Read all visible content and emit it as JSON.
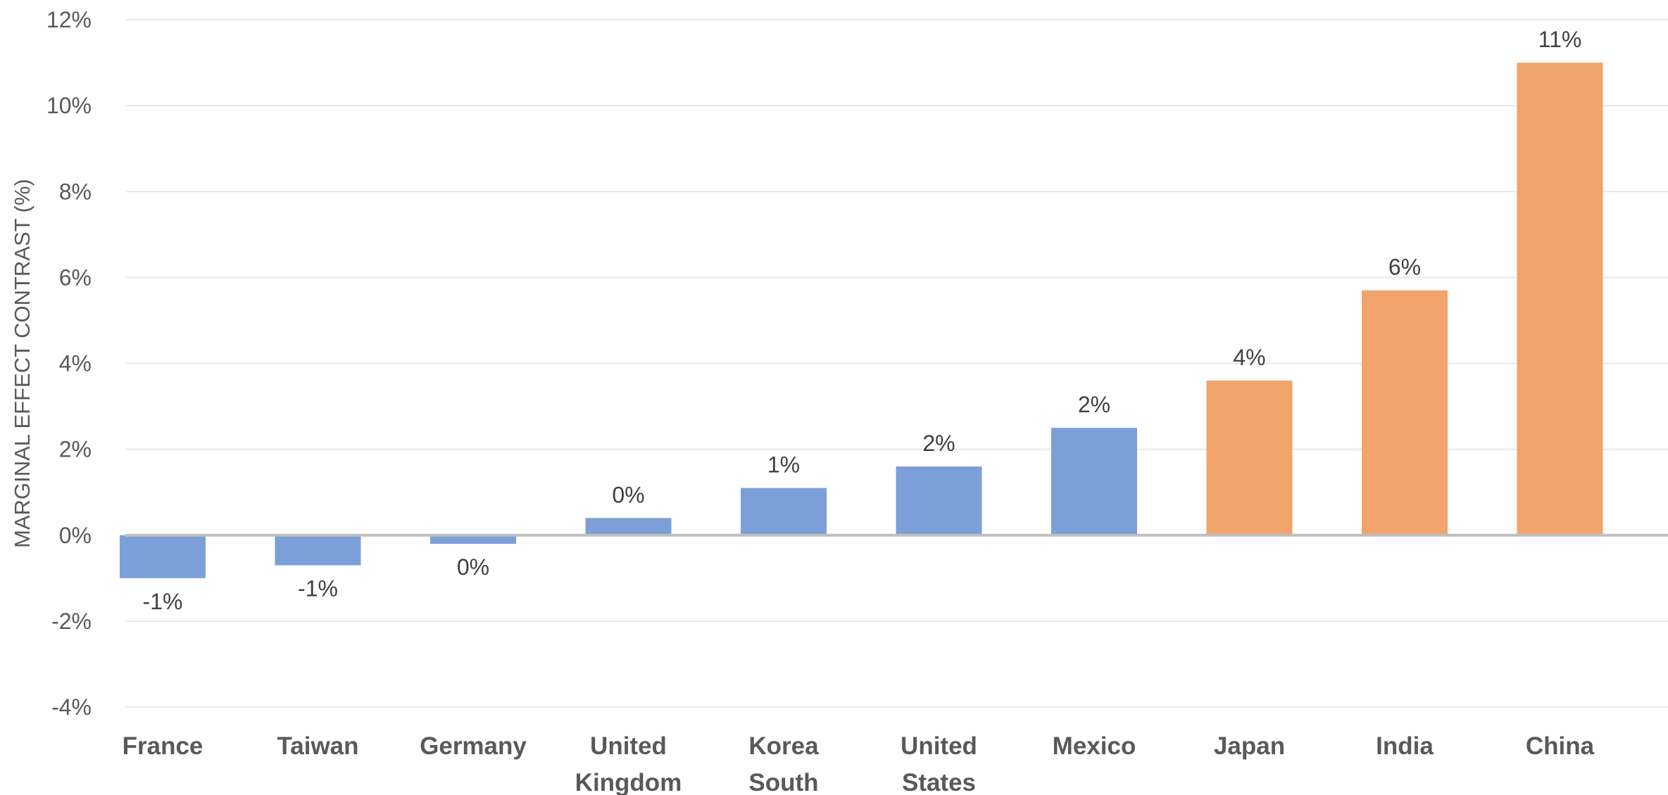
{
  "chart_data": {
    "type": "bar",
    "title": "",
    "xlabel": "",
    "ylabel": "MARGINAL EFFECT CONTRAST (%)",
    "ylim": [
      -4,
      12
    ],
    "yticks": [
      -4,
      -2,
      0,
      2,
      4,
      6,
      8,
      10,
      12
    ],
    "ytick_labels": [
      "-4%",
      "-2%",
      "0%",
      "2%",
      "4%",
      "6%",
      "8%",
      "10%",
      "12%"
    ],
    "grid": true,
    "legend": "none",
    "categories": [
      [
        "France"
      ],
      [
        "Taiwan"
      ],
      [
        "Germany"
      ],
      [
        "United",
        "Kingdom"
      ],
      [
        "Korea",
        "South"
      ],
      [
        "United",
        "States"
      ],
      [
        "Mexico"
      ],
      [
        "Japan"
      ],
      [
        "India"
      ],
      [
        "China"
      ]
    ],
    "values": [
      -1.0,
      -0.7,
      -0.2,
      0.4,
      1.1,
      1.6,
      2.5,
      3.6,
      5.7,
      11.0
    ],
    "data_labels": [
      "-1%",
      "-1%",
      "0%",
      "0%",
      "1%",
      "2%",
      "2%",
      "4%",
      "6%",
      "11%"
    ],
    "bar_colors": [
      "#7c9fd8",
      "#7c9fd8",
      "#7c9fd8",
      "#7c9fd8",
      "#7c9fd8",
      "#7c9fd8",
      "#7c9fd8",
      "#f0a46c",
      "#f0a46c",
      "#f0a46c"
    ],
    "colors": {
      "gridline": "#e8e8e8",
      "zero_line": "#bfbfbf"
    }
  }
}
